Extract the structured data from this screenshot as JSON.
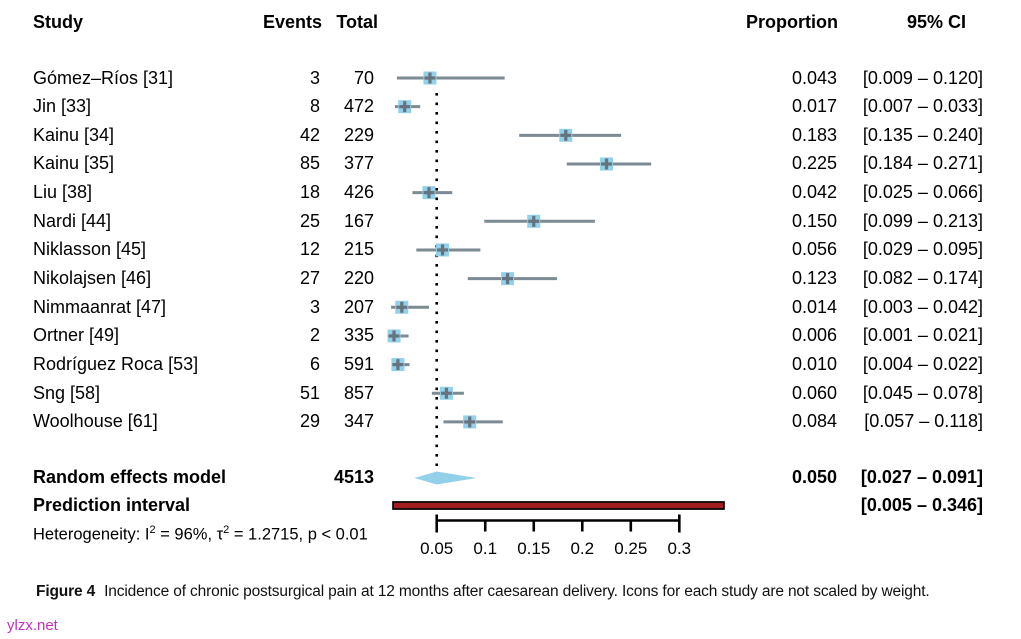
{
  "figure": {
    "columns": {
      "study": "Study",
      "events": "Events",
      "total": "Total",
      "proportion": "Proportion",
      "ci": "95% CI"
    },
    "het": {
      "p1": "Heterogeneity: I",
      "sup1": "2",
      "p2": " = 96%, τ",
      "sup2": "2",
      "p3": " = 1.2715, p < 0.01"
    },
    "caption_label": "Figure 4",
    "caption_text": "Incidence of chronic postsurgical pain at 12 months after caesarean delivery. Icons for each study are not scaled by weight.",
    "watermark": "ylzx.net"
  },
  "chart_data": {
    "type": "forest",
    "title": "Incidence of chronic postsurgical pain at 12 months after caesarean delivery",
    "x_axis": "Proportion",
    "axis": {
      "ticks": [
        0.05,
        0.1,
        0.15,
        0.2,
        0.25,
        0.3
      ],
      "tick_labels": [
        "0.05",
        "0.1",
        "0.15",
        "0.2",
        "0.25",
        "0.3"
      ],
      "xlim": [
        0.05,
        0.3
      ]
    },
    "studies": [
      {
        "study": "Gómez–Ríos [31]",
        "events": 3,
        "total": 70,
        "proportion": 0.043,
        "ci_low": 0.009,
        "ci_high": 0.12,
        "prop_text": "0.043",
        "ci_text": "[0.009 – 0.120]"
      },
      {
        "study": "Jin [33]",
        "events": 8,
        "total": 472,
        "proportion": 0.017,
        "ci_low": 0.007,
        "ci_high": 0.033,
        "prop_text": "0.017",
        "ci_text": "[0.007 – 0.033]"
      },
      {
        "study": "Kainu [34]",
        "events": 42,
        "total": 229,
        "proportion": 0.183,
        "ci_low": 0.135,
        "ci_high": 0.24,
        "prop_text": "0.183",
        "ci_text": "[0.135 – 0.240]"
      },
      {
        "study": "Kainu [35]",
        "events": 85,
        "total": 377,
        "proportion": 0.225,
        "ci_low": 0.184,
        "ci_high": 0.271,
        "prop_text": "0.225",
        "ci_text": "[0.184 – 0.271]"
      },
      {
        "study": "Liu [38]",
        "events": 18,
        "total": 426,
        "proportion": 0.042,
        "ci_low": 0.025,
        "ci_high": 0.066,
        "prop_text": "0.042",
        "ci_text": "[0.025 – 0.066]"
      },
      {
        "study": "Nardi [44]",
        "events": 25,
        "total": 167,
        "proportion": 0.15,
        "ci_low": 0.099,
        "ci_high": 0.213,
        "prop_text": "0.150",
        "ci_text": "[0.099 – 0.213]"
      },
      {
        "study": "Niklasson [45]",
        "events": 12,
        "total": 215,
        "proportion": 0.056,
        "ci_low": 0.029,
        "ci_high": 0.095,
        "prop_text": "0.056",
        "ci_text": "[0.029 – 0.095]"
      },
      {
        "study": "Nikolajsen [46]",
        "events": 27,
        "total": 220,
        "proportion": 0.123,
        "ci_low": 0.082,
        "ci_high": 0.174,
        "prop_text": "0.123",
        "ci_text": "[0.082 – 0.174]"
      },
      {
        "study": "Nimmaanrat [47]",
        "events": 3,
        "total": 207,
        "proportion": 0.014,
        "ci_low": 0.003,
        "ci_high": 0.042,
        "prop_text": "0.014",
        "ci_text": "[0.003 – 0.042]"
      },
      {
        "study": "Ortner [49]",
        "events": 2,
        "total": 335,
        "proportion": 0.006,
        "ci_low": 0.001,
        "ci_high": 0.021,
        "prop_text": "0.006",
        "ci_text": "[0.001 – 0.021]"
      },
      {
        "study": "Rodríguez Roca [53]",
        "events": 6,
        "total": 591,
        "proportion": 0.01,
        "ci_low": 0.004,
        "ci_high": 0.022,
        "prop_text": "0.010",
        "ci_text": "[0.004 – 0.022]"
      },
      {
        "study": "Sng [58]",
        "events": 51,
        "total": 857,
        "proportion": 0.06,
        "ci_low": 0.045,
        "ci_high": 0.078,
        "prop_text": "0.060",
        "ci_text": "[0.045 – 0.078]"
      },
      {
        "study": "Woolhouse [61]",
        "events": 29,
        "total": 347,
        "proportion": 0.084,
        "ci_low": 0.057,
        "ci_high": 0.118,
        "prop_text": "0.084",
        "ci_text": "[0.057 – 0.118]"
      }
    ],
    "summary": {
      "label": "Random effects model",
      "total": 4513,
      "proportion": 0.05,
      "ci_low": 0.027,
      "ci_high": 0.091,
      "prop_text": "0.050",
      "ci_text": "[0.027 – 0.091]"
    },
    "prediction": {
      "label": "Prediction interval",
      "low": 0.005,
      "high": 0.346,
      "ci_text": "[0.005 – 0.346]"
    },
    "heterogeneity": {
      "i_squared": "96%",
      "tau_squared": "1.2715",
      "p_value": "p < 0.01"
    },
    "colors": {
      "square": "#92d1e9",
      "diamond": "#92d1e9",
      "ci_line": "#7c8a94",
      "marker": "#66737e",
      "prediction_fill": "#a31f1f",
      "prediction_border": "#0a0a0a",
      "dotted_line": "#000000",
      "watermark": "#c230c2"
    }
  }
}
